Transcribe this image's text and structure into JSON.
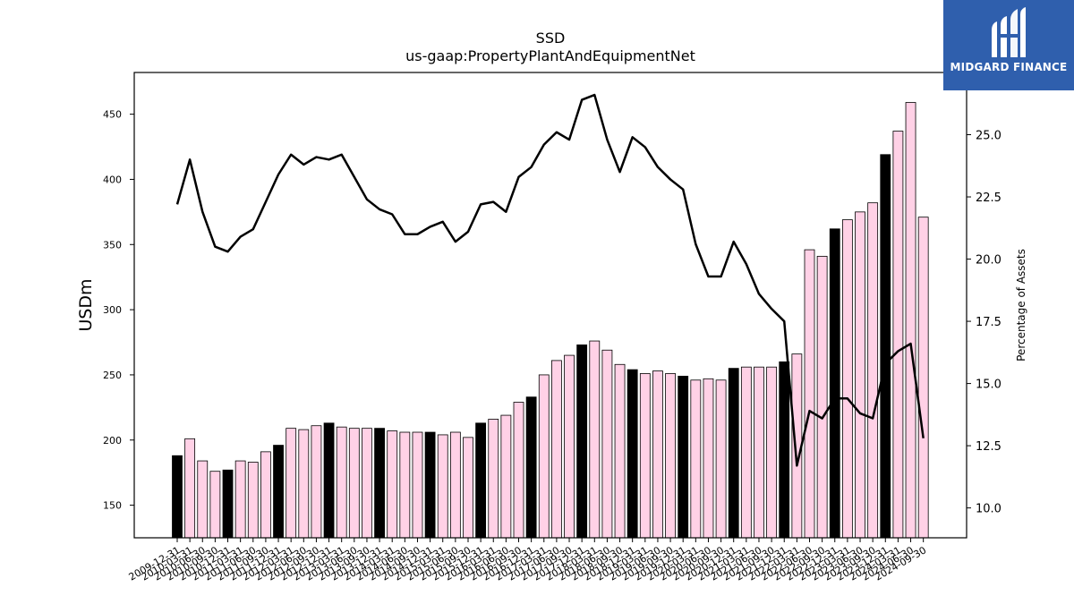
{
  "chart_data": {
    "type": "bar",
    "title": "SSD",
    "subtitle": "us-gaap:PropertyPlantAndEquipmentNet",
    "ylabel": "USDm",
    "y2label": "Percentage of Assets",
    "ylim": [
      125,
      482
    ],
    "y2lim": [
      8.8,
      27.5
    ],
    "yticks": [
      150,
      200,
      250,
      300,
      350,
      400,
      450
    ],
    "y2ticks": [
      "10.0",
      "12.5",
      "15.0",
      "17.5",
      "20.0",
      "22.5",
      "25.0"
    ],
    "categories": [
      "2009-12-31",
      "2010-03-31",
      "2010-06-30",
      "2010-09-30",
      "2010-12-31",
      "2011-03-31",
      "2011-06-30",
      "2011-09-30",
      "2011-12-31",
      "2012-03-31",
      "2012-06-30",
      "2012-09-30",
      "2012-12-31",
      "2013-03-31",
      "2013-06-30",
      "2013-09-30",
      "2013-12-31",
      "2014-03-31",
      "2014-06-30",
      "2014-09-30",
      "2014-12-31",
      "2015-03-31",
      "2015-06-30",
      "2015-09-30",
      "2015-12-31",
      "2016-03-31",
      "2016-06-30",
      "2016-09-30",
      "2016-12-31",
      "2017-03-31",
      "2017-06-30",
      "2017-09-30",
      "2017-12-31",
      "2018-03-31",
      "2018-06-30",
      "2018-09-30",
      "2018-12-31",
      "2019-03-31",
      "2019-06-30",
      "2019-09-30",
      "2019-12-31",
      "2020-03-31",
      "2020-06-30",
      "2020-09-30",
      "2020-12-31",
      "2021-03-31",
      "2021-06-30",
      "2021-09-30",
      "2021-12-31",
      "2022-03-31",
      "2022-06-30",
      "2022-09-30",
      "2022-12-31",
      "2023-03-31",
      "2023-06-30",
      "2023-09-30",
      "2023-12-31",
      "2024-03-31",
      "2024-06-30",
      "2024-09-30"
    ],
    "series": [
      {
        "type": "bar",
        "axis": "left",
        "values": [
          188,
          201,
          184,
          176,
          177,
          184,
          183,
          191,
          196,
          209,
          208,
          211,
          213,
          210,
          209,
          209,
          209,
          207,
          206,
          206,
          206,
          204,
          206,
          202,
          213,
          216,
          219,
          229,
          233,
          250,
          261,
          265,
          273,
          276,
          269,
          258,
          254,
          251,
          253,
          251,
          249,
          246,
          247,
          246,
          255,
          256,
          256,
          256,
          260,
          266,
          346,
          341,
          362,
          369,
          375,
          382,
          419,
          437,
          459,
          371
        ],
        "colors": [
          "#000000",
          "#ffd1e6"
        ],
        "highlight_every": 4,
        "highlight_start": 0
      },
      {
        "type": "line",
        "axis": "right",
        "color": "#000000",
        "values": [
          22.2,
          24.0,
          21.9,
          20.5,
          20.3,
          20.9,
          21.2,
          22.3,
          23.4,
          24.2,
          23.8,
          24.1,
          24.0,
          24.2,
          23.3,
          22.4,
          22.0,
          21.8,
          21.0,
          21.0,
          21.3,
          21.5,
          20.7,
          21.1,
          22.2,
          22.3,
          21.9,
          23.3,
          23.7,
          24.6,
          25.1,
          24.8,
          26.4,
          26.6,
          24.8,
          23.5,
          24.9,
          24.5,
          23.7,
          23.2,
          22.8,
          20.6,
          19.3,
          19.3,
          20.7,
          19.8,
          18.6,
          18.0,
          17.5,
          11.7,
          13.9,
          13.6,
          14.4,
          14.4,
          13.8,
          13.6,
          15.8,
          16.3,
          16.6,
          12.8
        ]
      }
    ],
    "grid": false,
    "legend": "none"
  },
  "logo": {
    "text": "MIDGARD FINANCE",
    "background": "#2f5fad"
  }
}
